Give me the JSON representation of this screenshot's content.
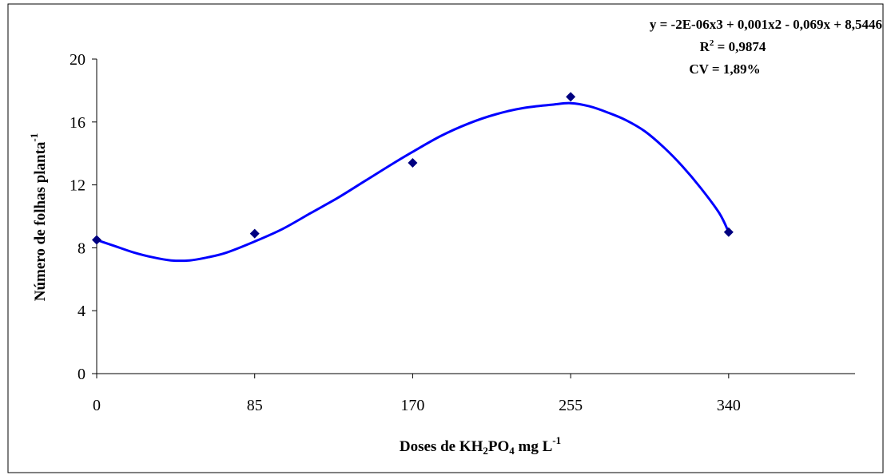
{
  "chart_data": {
    "type": "scatter",
    "title": "",
    "xlabel": {
      "prefix": "Doses de KH",
      "sub1": "2",
      "mid": "PO",
      "sub2": "4",
      "suffix": " mg L",
      "sup": "-1"
    },
    "ylabel": {
      "main": "Número de folhas planta",
      "sup": "-1"
    },
    "x_ticks": [
      "0",
      "85",
      "170",
      "255",
      "340"
    ],
    "y_ticks": [
      "0",
      "4",
      "8",
      "12",
      "16",
      "20"
    ],
    "xlim": [
      0,
      408
    ],
    "ylim": [
      0,
      20
    ],
    "grid": false,
    "legend": "none",
    "series": [
      {
        "x": [
          0,
          85,
          170,
          255,
          340
        ],
        "y": [
          8.5,
          8.9,
          13.4,
          17.6,
          9.0
        ],
        "marker": "diamond",
        "color": "#000080"
      }
    ],
    "trendline": {
      "type": "polynomial",
      "color": "#0000ff",
      "points": [
        [
          0,
          8.5
        ],
        [
          10,
          8.1
        ],
        [
          20,
          7.7
        ],
        [
          30,
          7.4
        ],
        [
          40,
          7.2
        ],
        [
          50,
          7.2
        ],
        [
          60,
          7.4
        ],
        [
          70,
          7.7
        ],
        [
          85,
          8.4
        ],
        [
          100,
          9.2
        ],
        [
          115,
          10.2
        ],
        [
          130,
          11.2
        ],
        [
          145,
          12.3
        ],
        [
          160,
          13.4
        ],
        [
          170,
          14.1
        ],
        [
          185,
          15.1
        ],
        [
          200,
          15.9
        ],
        [
          215,
          16.5
        ],
        [
          230,
          16.9
        ],
        [
          245,
          17.1
        ],
        [
          255,
          17.2
        ],
        [
          265,
          17.0
        ],
        [
          275,
          16.6
        ],
        [
          285,
          16.1
        ],
        [
          295,
          15.4
        ],
        [
          305,
          14.4
        ],
        [
          315,
          13.2
        ],
        [
          325,
          11.8
        ],
        [
          335,
          10.2
        ],
        [
          340,
          9.0
        ]
      ]
    },
    "annotations": {
      "equation": "y = -2E-06x3 + 0,001x2 - 0,069x + 8,5446",
      "r2_label": "R",
      "r2_sup": "2",
      "r2_value": " = 0,9874",
      "cv": "CV = 1,89%"
    }
  }
}
